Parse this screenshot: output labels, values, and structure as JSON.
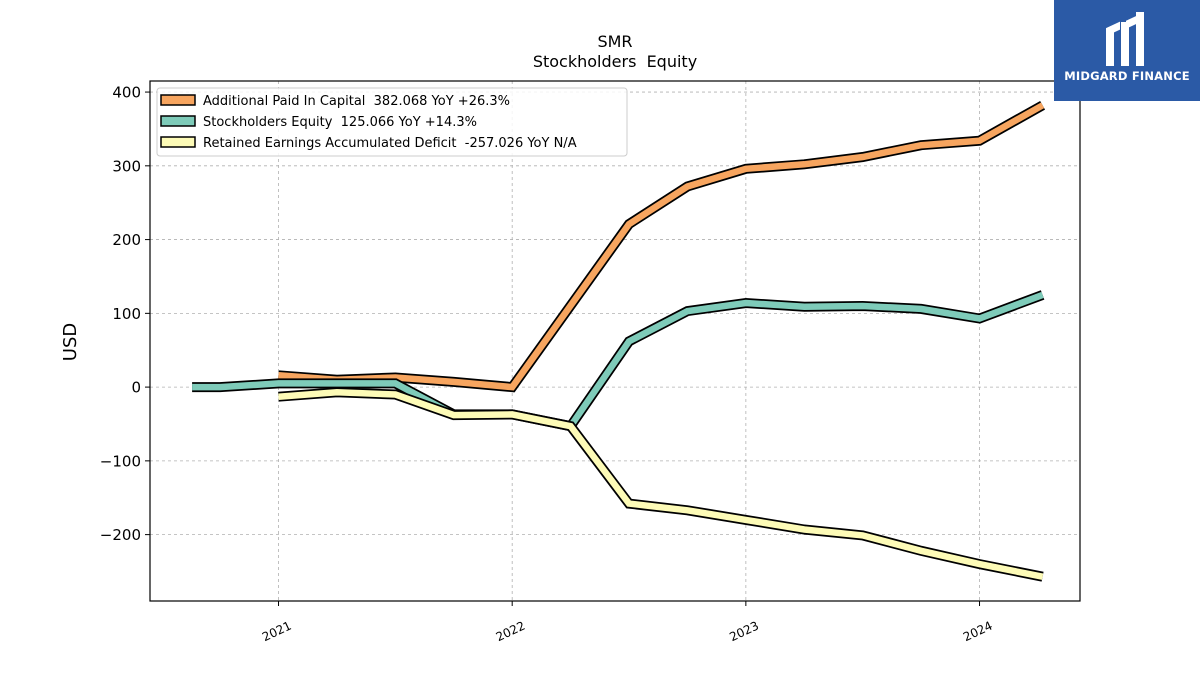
{
  "chart_data": {
    "type": "line",
    "title": "SMR",
    "subtitle": "Stockholders  Equity",
    "xlabel": "",
    "ylabel": "USD",
    "ylim": [
      -290,
      415
    ],
    "xlim": [
      2020.45,
      2024.43
    ],
    "yticks": [
      400,
      300,
      200,
      100,
      0,
      -100,
      -200
    ],
    "ytick_labels": [
      "400",
      "300",
      "200",
      "100",
      "0",
      "−100",
      "−200"
    ],
    "xticks": [
      2021,
      2022,
      2023,
      2024
    ],
    "xtick_labels": [
      "2021",
      "2022",
      "2023",
      "2024"
    ],
    "grid": true,
    "legend_position": "top-left",
    "series": [
      {
        "name": "Additional Paid In Capital  382.068 YoY +26.3%",
        "color": "#f7a55f",
        "x": [
          2021.0,
          2021.25,
          2021.5,
          2021.75,
          2022.0,
          2022.5,
          2022.75,
          2023.0,
          2023.25,
          2023.5,
          2023.75,
          2024.0,
          2024.27
        ],
        "y": [
          16,
          10,
          13,
          7,
          0,
          221,
          272,
          296,
          302,
          312,
          328,
          334,
          382
        ]
      },
      {
        "name": "Stockholders Equity  125.066 YoY +14.3%",
        "color": "#7ecbb9",
        "x": [
          2020.63,
          2020.75,
          2021.0,
          2021.25,
          2021.5,
          2021.75,
          2022.0,
          2022.25,
          2022.5,
          2022.75,
          2023.0,
          2023.25,
          2023.5,
          2023.75,
          2024.0,
          2024.27
        ],
        "y": [
          0,
          0,
          5,
          5,
          5,
          -37,
          -37,
          -53,
          62,
          103,
          114,
          109,
          110,
          106,
          93,
          125
        ]
      },
      {
        "name": "Retained Earnings Accumulated Deficit  -257.026 YoY N/A",
        "color": "#fdfbb7",
        "x": [
          2021.0,
          2021.25,
          2021.5,
          2021.75,
          2022.0,
          2022.25,
          2022.5,
          2022.75,
          2023.0,
          2023.25,
          2023.5,
          2023.75,
          2024.0,
          2024.27
        ],
        "y": [
          -13,
          -7,
          -10,
          -38,
          -37,
          -53,
          -158,
          -167,
          -180,
          -193,
          -201,
          -222,
          -240,
          -257
        ]
      }
    ]
  },
  "logo": {
    "text": "MIDGARD FINANCE",
    "color": "#2b5aa6"
  }
}
